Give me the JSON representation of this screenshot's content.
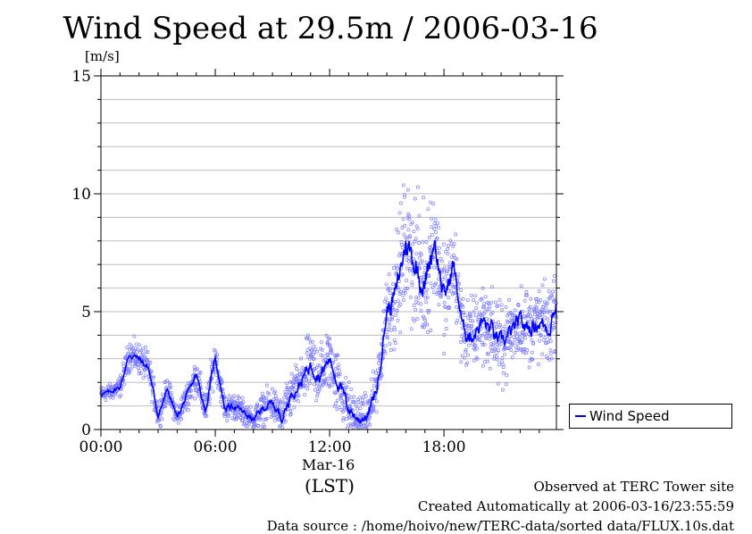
{
  "chart_data": {
    "type": "scatter",
    "title": "Wind Speed at 29.5m / 2006-03-16",
    "ylabel": "[m/s]",
    "ylim": [
      0,
      15
    ],
    "yticks": [
      "0",
      "5",
      "10",
      "15"
    ],
    "xlim_hours": [
      0,
      23.9
    ],
    "xticks": [
      "00:00",
      "06:00",
      "12:00",
      "18:00"
    ],
    "xtick_hours": [
      0,
      6,
      12,
      18
    ],
    "date_label": "Mar-16",
    "xlabel": "(LST)",
    "grid": true,
    "legend": {
      "position": "right",
      "entries": [
        "Wind Speed"
      ]
    },
    "series": [
      {
        "name": "Wind Speed",
        "color": "#0000ff",
        "hours": [
          0.0,
          0.5,
          1.0,
          1.5,
          2.0,
          2.5,
          3.0,
          3.5,
          4.0,
          4.5,
          5.0,
          5.5,
          6.0,
          6.5,
          7.0,
          7.5,
          8.0,
          8.5,
          9.0,
          9.5,
          10.0,
          10.5,
          11.0,
          11.5,
          12.0,
          12.5,
          13.0,
          13.5,
          14.0,
          14.5,
          15.0,
          15.5,
          16.0,
          16.5,
          17.0,
          17.5,
          18.0,
          18.5,
          19.0,
          19.5,
          20.0,
          20.5,
          21.0,
          21.5,
          22.0,
          22.5,
          23.0,
          23.5,
          23.9
        ],
        "values": [
          1.5,
          1.6,
          1.8,
          3.2,
          3.0,
          2.6,
          0.6,
          1.7,
          0.5,
          1.4,
          2.3,
          0.8,
          3.1,
          0.9,
          1.0,
          0.7,
          0.4,
          0.9,
          1.1,
          0.5,
          1.5,
          2.0,
          2.8,
          2.3,
          3.0,
          1.9,
          0.9,
          0.4,
          0.6,
          1.8,
          5.0,
          5.8,
          8.0,
          7.0,
          6.1,
          8.2,
          5.5,
          7.0,
          4.2,
          4.0,
          4.6,
          4.2,
          3.6,
          4.1,
          4.5,
          4.3,
          4.6,
          4.3,
          5.4
        ],
        "scatter_spread": [
          0.3,
          0.3,
          0.4,
          0.6,
          0.6,
          0.6,
          0.5,
          0.5,
          0.4,
          0.5,
          0.7,
          0.6,
          0.7,
          0.5,
          0.5,
          0.5,
          0.5,
          0.6,
          0.7,
          0.7,
          0.9,
          1.0,
          1.2,
          1.2,
          1.3,
          1.2,
          1.0,
          0.8,
          0.7,
          1.0,
          1.6,
          2.0,
          2.5,
          2.5,
          2.5,
          2.3,
          2.0,
          1.8,
          1.5,
          1.4,
          1.5,
          1.5,
          1.4,
          1.4,
          1.5,
          1.5,
          1.5,
          1.5,
          1.6
        ]
      }
    ]
  },
  "footer": {
    "observed": "Observed at TERC Tower site",
    "created": "Created Automatically at 2006-03-16/23:55:59",
    "source": "Data source : /home/hoivo/new/TERC-data/sorted  data/FLUX.10s.dat"
  }
}
